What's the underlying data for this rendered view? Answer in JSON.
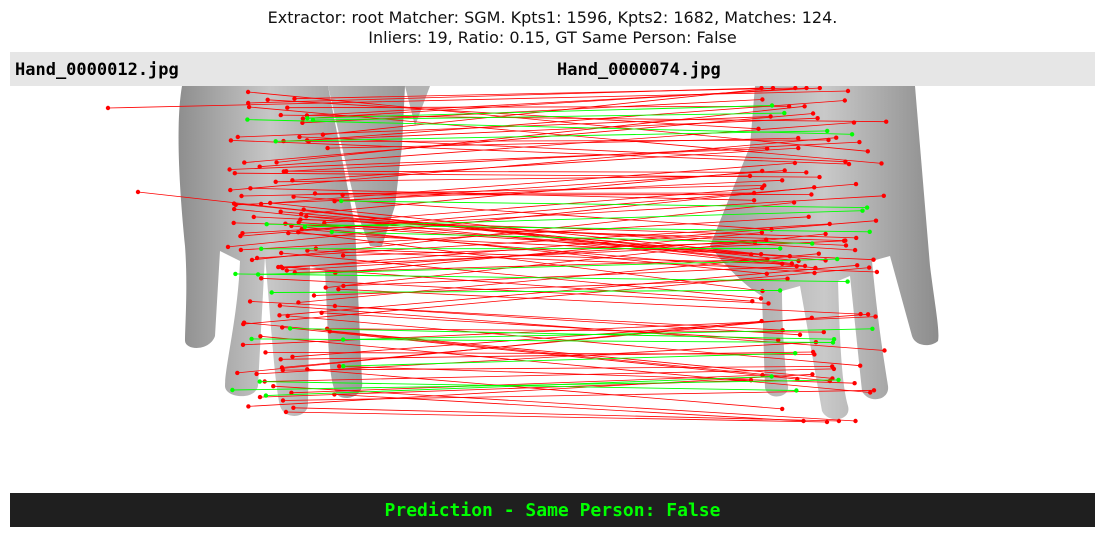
{
  "title": {
    "line1": "Extractor:  root Matcher: SGM. Kpts1: 1596, Kpts2: 1682, Matches: 124.",
    "line2": "Inliers: 19, Ratio: 0.15, GT Same Person: False"
  },
  "images": {
    "left_filename": "Hand_0000012.jpg",
    "right_filename": "Hand_0000074.jpg"
  },
  "prediction": {
    "text": "Prediction - Same Person: False",
    "color": "#00ff00"
  },
  "colors": {
    "outlier": "#ff0000",
    "inlier": "#00ff00",
    "header_bg": "#e6e6e6",
    "footer_bg": "#1f1f1f"
  }
}
